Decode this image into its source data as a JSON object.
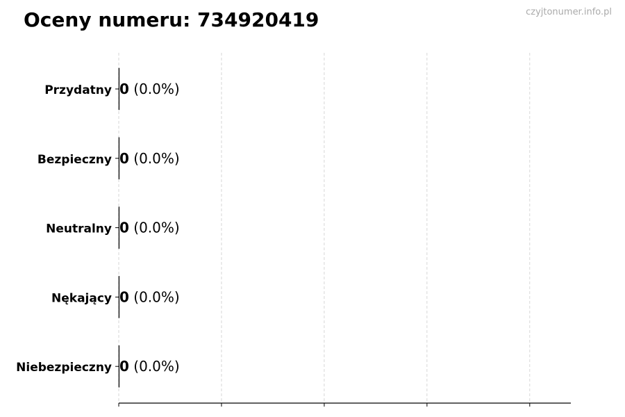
{
  "chart_data": {
    "type": "bar",
    "orientation": "horizontal",
    "title": "Oceny numeru: 734920419",
    "watermark": "czyjtonumer.info.pl",
    "categories": [
      "Przydatny",
      "Bezpieczny",
      "Neutralny",
      "Nękający",
      "Niebezpieczny"
    ],
    "values": [
      0,
      0,
      0,
      0,
      0
    ],
    "value_labels": [
      "0",
      "0",
      "0",
      "0",
      "0"
    ],
    "percent_labels": [
      "(0.0%)",
      "(0.0%)",
      "(0.0%)",
      "(0.0%)",
      "(0.0%)"
    ],
    "xlim": [
      0,
      4.4
    ],
    "xticks": [
      0,
      1,
      2,
      3,
      4
    ],
    "grid": "x dashed",
    "colors": {
      "bar_edge": "#000000",
      "grid": "#cccccc",
      "watermark": "#aaaaaa"
    }
  }
}
